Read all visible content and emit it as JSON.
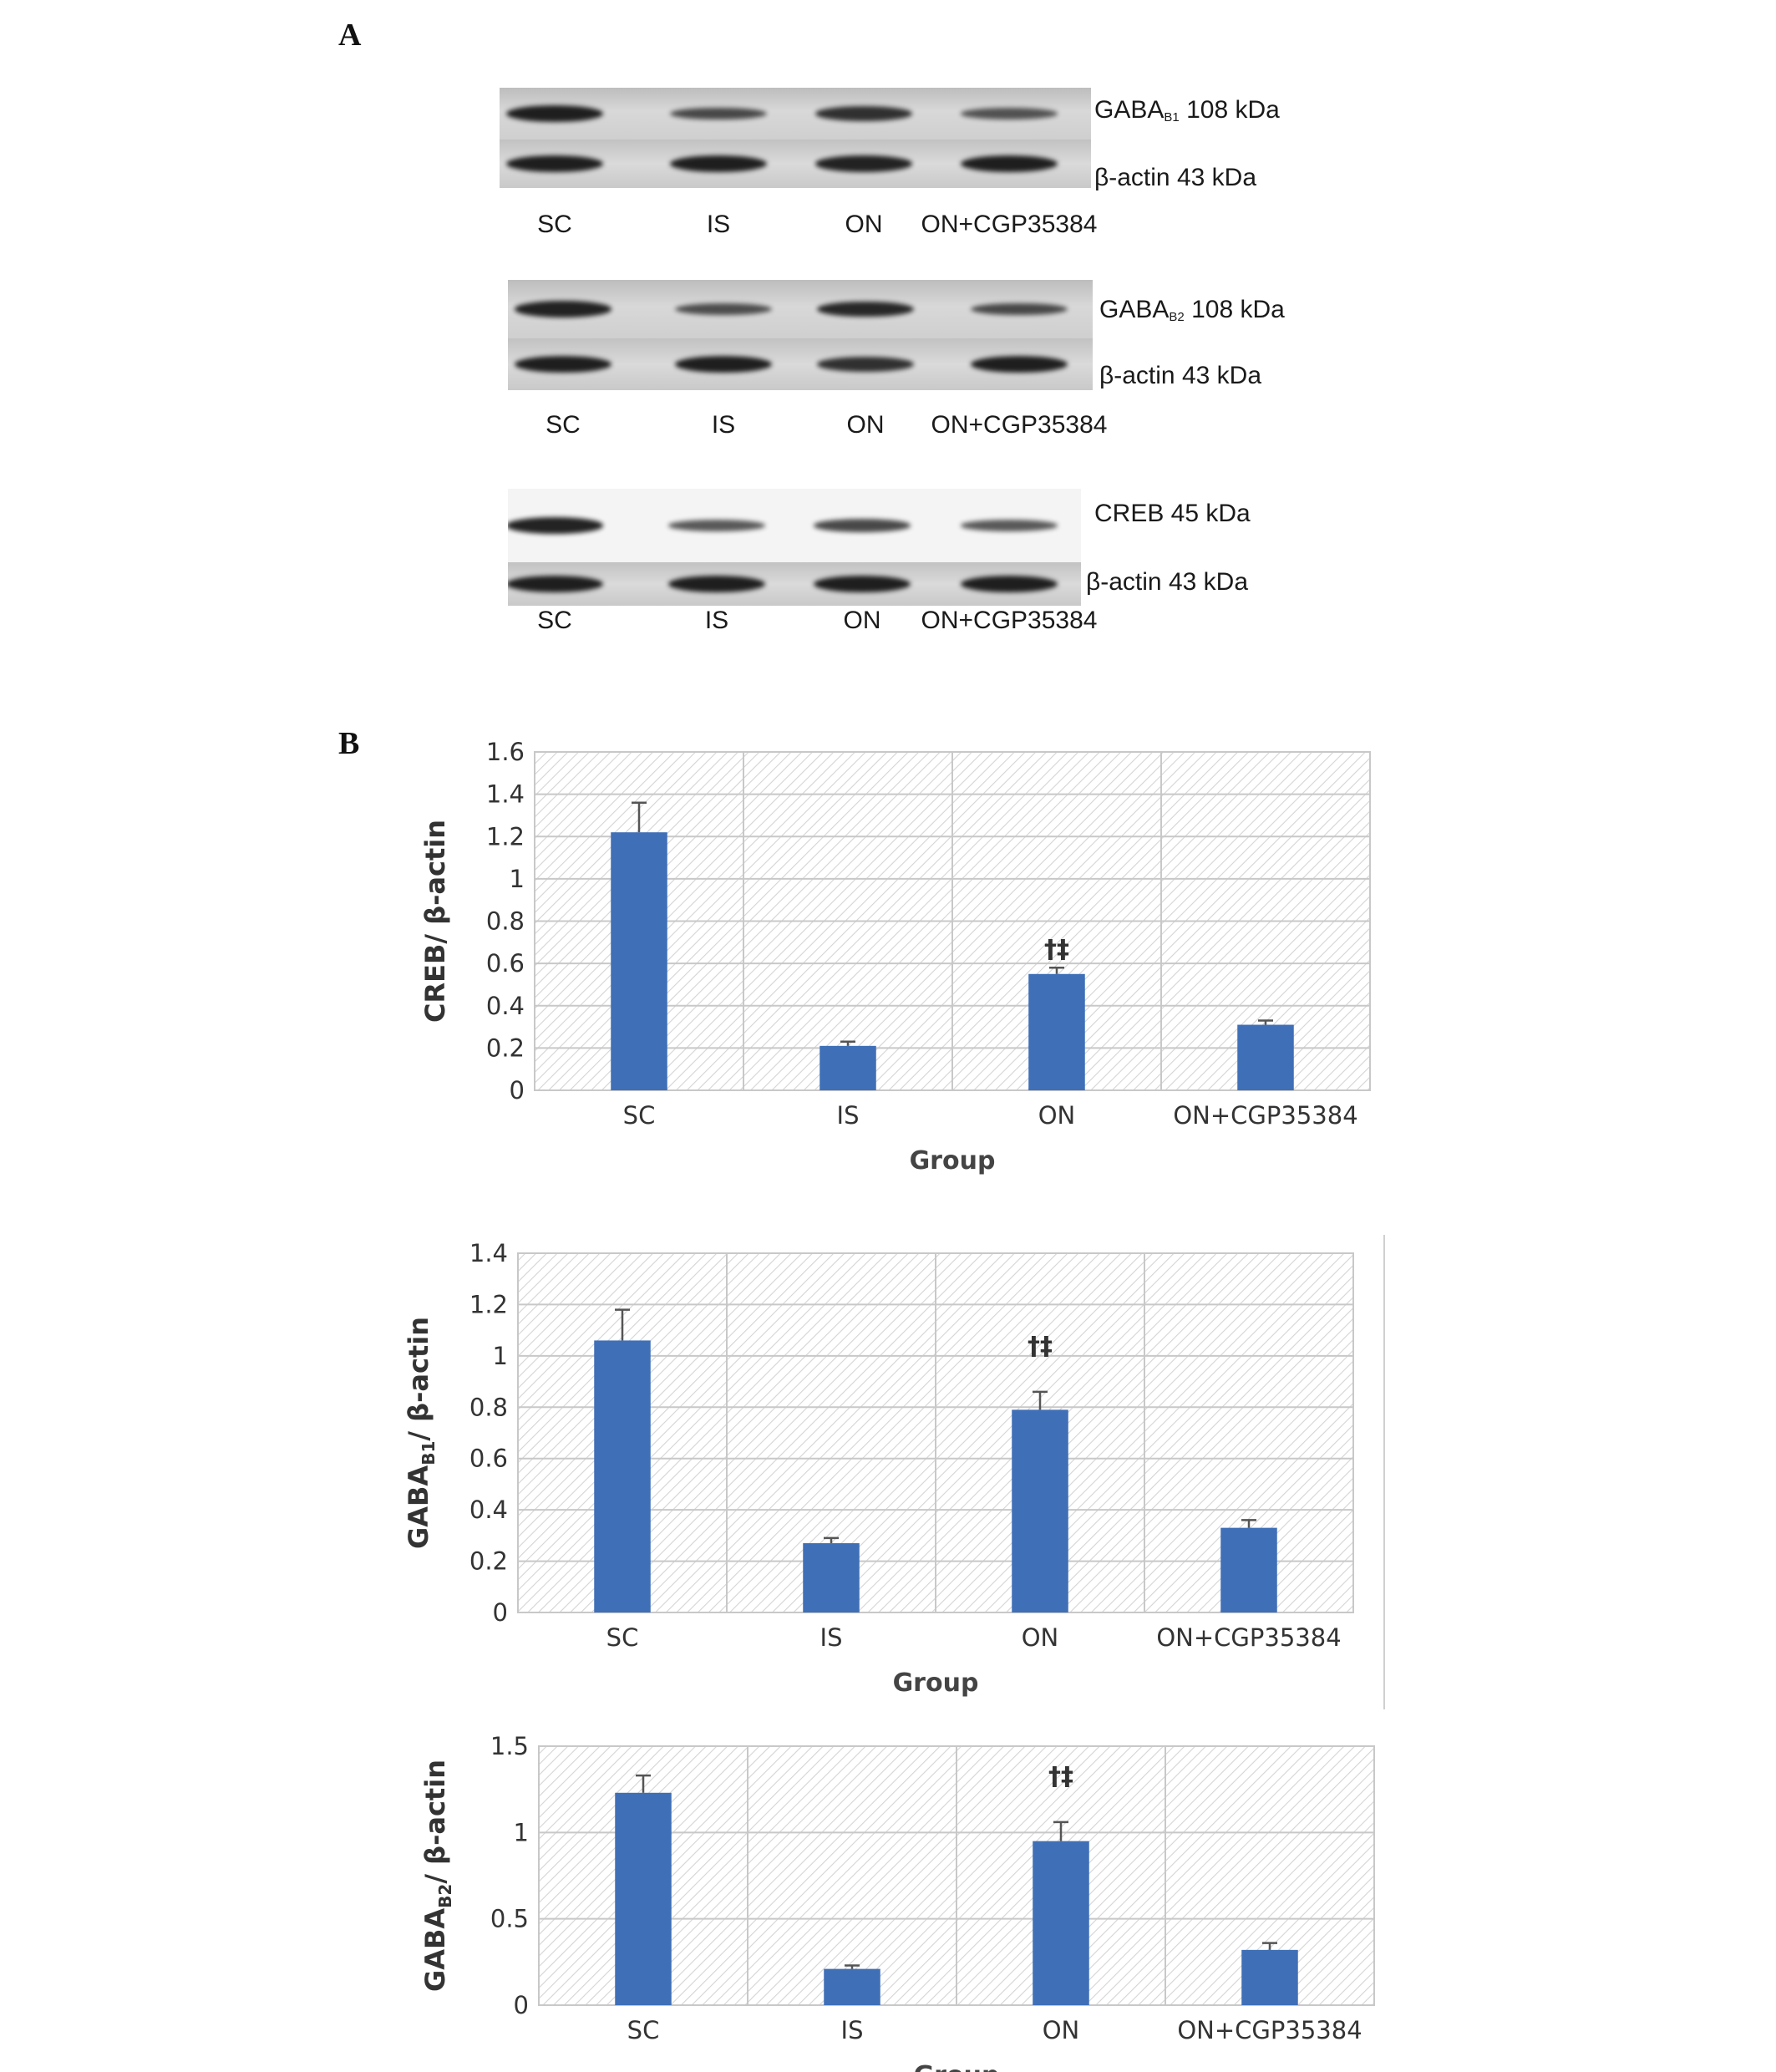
{
  "panels": {
    "a": "A",
    "b": "B"
  },
  "lanes": [
    "SC",
    "IS",
    "ON",
    "ON+CGP35384"
  ],
  "blots": [
    {
      "protein_main": "GABA",
      "protein_sub": "B1",
      "protein_rest": " 108 kDa",
      "control": "β-actin 43 kDa",
      "band_intensity": [
        1.0,
        0.55,
        0.8,
        0.45
      ],
      "control_intensity": [
        1.0,
        1.0,
        0.95,
        1.0
      ]
    },
    {
      "protein_main": "GABA",
      "protein_sub": "B2",
      "protein_rest": " 108 kDa",
      "control": "β-actin 43 kDa",
      "band_intensity": [
        0.95,
        0.5,
        0.9,
        0.55
      ],
      "control_intensity": [
        1.0,
        1.0,
        0.8,
        1.0
      ]
    },
    {
      "protein_main": "CREB 45 kDa",
      "protein_sub": "",
      "protein_rest": "",
      "control": "β-actin 43 kDa",
      "band_intensity": [
        0.95,
        0.45,
        0.6,
        0.45
      ],
      "control_intensity": [
        1.0,
        1.0,
        1.0,
        1.0
      ]
    }
  ],
  "colors": {
    "bar": "#3f6fb7",
    "grid": "#c8c8c8",
    "hatch": "#d4d4d4",
    "error": "#555555"
  },
  "chart_data": [
    {
      "type": "bar",
      "categories": [
        "SC",
        "IS",
        "ON",
        "ON+CGP35384"
      ],
      "values": [
        1.22,
        0.21,
        0.55,
        0.31
      ],
      "errors": [
        0.14,
        0.02,
        0.03,
        0.02
      ],
      "annotations": [
        "",
        "",
        "†‡",
        ""
      ],
      "ylabel_main": "CREB/ β-actin",
      "ylabel_sub": "",
      "ylabel_rest": "",
      "xlabel": "Group",
      "ylim": [
        0,
        1.6
      ],
      "ticks": [
        "0",
        "0.2",
        "0.4",
        "0.6",
        "0.8",
        "1",
        "1.2",
        "1.4",
        "1.6"
      ],
      "grid": true
    },
    {
      "type": "bar",
      "categories": [
        "SC",
        "IS",
        "ON",
        "ON+CGP35384"
      ],
      "values": [
        1.06,
        0.27,
        0.79,
        0.33
      ],
      "errors": [
        0.12,
        0.02,
        0.07,
        0.03
      ],
      "annotations": [
        "",
        "",
        "†‡",
        ""
      ],
      "ylabel_main": "GABA",
      "ylabel_sub": "B1",
      "ylabel_rest": "/ β-actin",
      "xlabel": "Group",
      "ylim": [
        0,
        1.4
      ],
      "ticks": [
        "0",
        "0.2",
        "0.4",
        "0.6",
        "0.8",
        "1",
        "1.2",
        "1.4"
      ],
      "grid": true
    },
    {
      "type": "bar",
      "categories": [
        "SC",
        "IS",
        "ON",
        "ON+CGP35384"
      ],
      "values": [
        1.23,
        0.21,
        0.95,
        0.32
      ],
      "errors": [
        0.1,
        0.02,
        0.11,
        0.04
      ],
      "annotations": [
        "",
        "",
        "†‡",
        ""
      ],
      "ylabel_main": "GABA",
      "ylabel_sub": "B2",
      "ylabel_rest": "/ β-actin",
      "xlabel": "Group",
      "ylim": [
        0,
        1.5
      ],
      "ticks": [
        "0",
        "0.5",
        "1",
        "1.5"
      ],
      "grid": true
    }
  ]
}
